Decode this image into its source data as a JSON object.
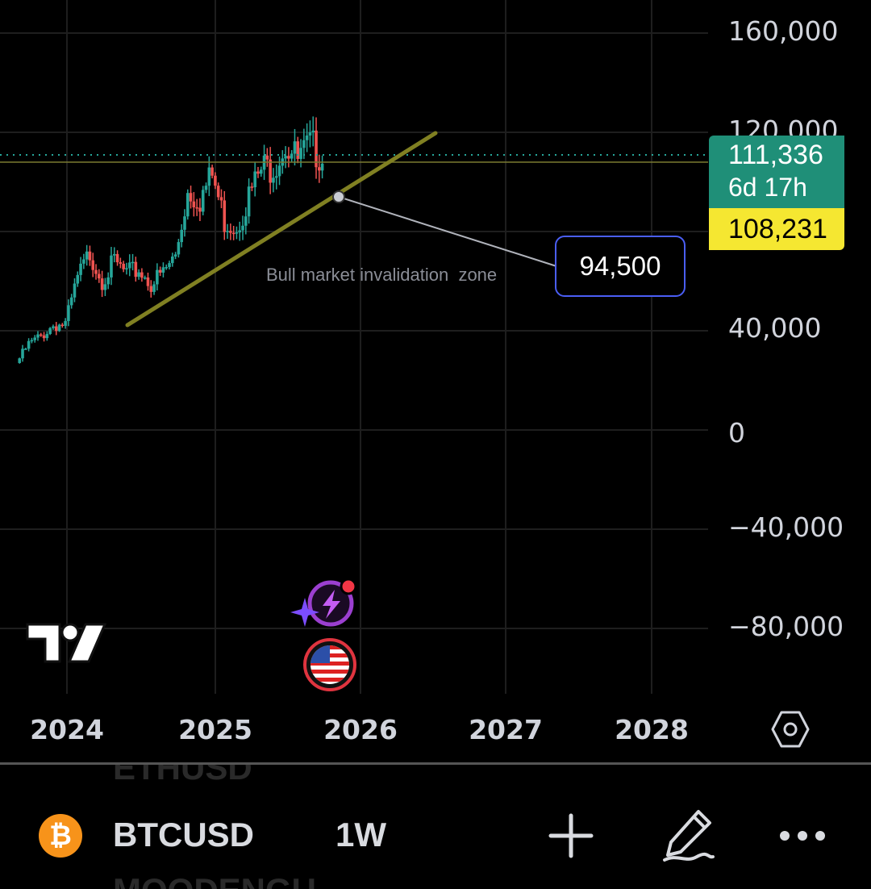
{
  "chart_data": {
    "type": "candlestick",
    "symbol": "BTCUSD",
    "interval": "1W",
    "x_ticks": [
      "2024",
      "2025",
      "2026",
      "2027",
      "2028"
    ],
    "y_ticks": [
      "160,000",
      "120,000",
      "40,000",
      "0",
      "−40,000",
      "−80,000"
    ],
    "ylim": [
      -105000,
      171000
    ],
    "grid": true,
    "series": [
      {
        "date": "2023-09",
        "close": 27000
      },
      {
        "date": "2023-10",
        "close": 34500
      },
      {
        "date": "2023-11",
        "close": 37700
      },
      {
        "date": "2023-12",
        "close": 42300
      },
      {
        "date": "2024-01",
        "close": 42600
      },
      {
        "date": "2024-02",
        "close": 61100
      },
      {
        "date": "2024-03",
        "close": 71300
      },
      {
        "date": "2024-04",
        "close": 60700
      },
      {
        "date": "2024-05",
        "close": 67500
      },
      {
        "date": "2024-06",
        "close": 62700
      },
      {
        "date": "2024-07",
        "close": 64600
      },
      {
        "date": "2024-08",
        "close": 58900
      },
      {
        "date": "2024-09",
        "close": 63300
      },
      {
        "date": "2024-10",
        "close": 70200
      },
      {
        "date": "2024-11",
        "close": 96400
      },
      {
        "date": "2024-12",
        "close": 93400
      },
      {
        "date": "2025-01",
        "close": 102400
      },
      {
        "date": "2025-02",
        "close": 84300
      },
      {
        "date": "2025-03",
        "close": 82500
      },
      {
        "date": "2025-04",
        "close": 94200
      },
      {
        "date": "2025-05",
        "close": 104600
      },
      {
        "date": "2025-06",
        "close": 107100
      },
      {
        "date": "2025-07",
        "close": 115700
      },
      {
        "date": "2025-08",
        "close": 108200
      },
      {
        "date": "2025-09",
        "close": 114000
      },
      {
        "date": "2025-10",
        "close": 111336
      }
    ],
    "last_price": "111,336",
    "countdown": "6d 17h",
    "prev_close": "108,231",
    "target_label": "94,500",
    "annotation": "Bull market invalidation  zone",
    "colors": {
      "up": "#26a69a",
      "down": "#ef5350",
      "trendline": "#808022",
      "price_tag": "#1f8f78",
      "prev_tag": "#f5e731",
      "target_border": "#4a5ef5"
    }
  },
  "bottom_bar": {
    "symbol": "BTCUSD",
    "interval": "1W",
    "ghost_above": "ETHUSD",
    "ghost_below": "MOODENGU",
    "coin_glyph": "₿"
  },
  "icons": [
    "tradingview-logo-icon",
    "flash-ai-icon",
    "us-flag-icon",
    "settings-icon",
    "plus-icon",
    "pen-draw-icon",
    "more-icon"
  ]
}
